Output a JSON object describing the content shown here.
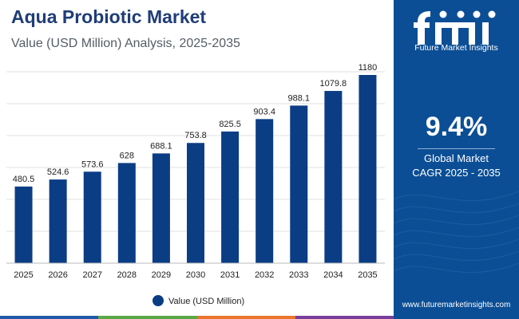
{
  "header": {
    "title": "Aqua Probiotic Market",
    "subtitle": "Value (USD Million) Analysis, 2025-2035"
  },
  "sidebar": {
    "brand_name": "Future Market Insights",
    "logo_icon": "fmi-logo-icon",
    "cagr_value": "9.4%",
    "cagr_label_line1": "Global Market",
    "cagr_label_line2": "CAGR 2025 - 2035",
    "website": "www.futuremarketinsights.com",
    "background_color": "#0b4e95"
  },
  "colors": {
    "bar": "#0b3d85",
    "stripe": [
      "#1e5aa8",
      "#5aa846",
      "#e8762c",
      "#7a3e9d"
    ]
  },
  "chart_data": {
    "type": "bar",
    "categories": [
      "2025",
      "2026",
      "2027",
      "2028",
      "2029",
      "2030",
      "2031",
      "2032",
      "2033",
      "2034",
      "2035"
    ],
    "series": [
      {
        "name": "Value (USD Million)",
        "values": [
          480.5,
          524.6,
          573.6,
          628,
          688.1,
          753.8,
          825.5,
          903.4,
          988.1,
          1079.8,
          1180
        ],
        "labels": [
          "480.5",
          "524.6",
          "573.6",
          "628",
          "688.1",
          "753.8",
          "825.5",
          "903.4",
          "988.1",
          "1079.8",
          "1180"
        ]
      }
    ],
    "ylim": [
      0,
      1200
    ],
    "grid": true,
    "legend": "bottom-center"
  }
}
